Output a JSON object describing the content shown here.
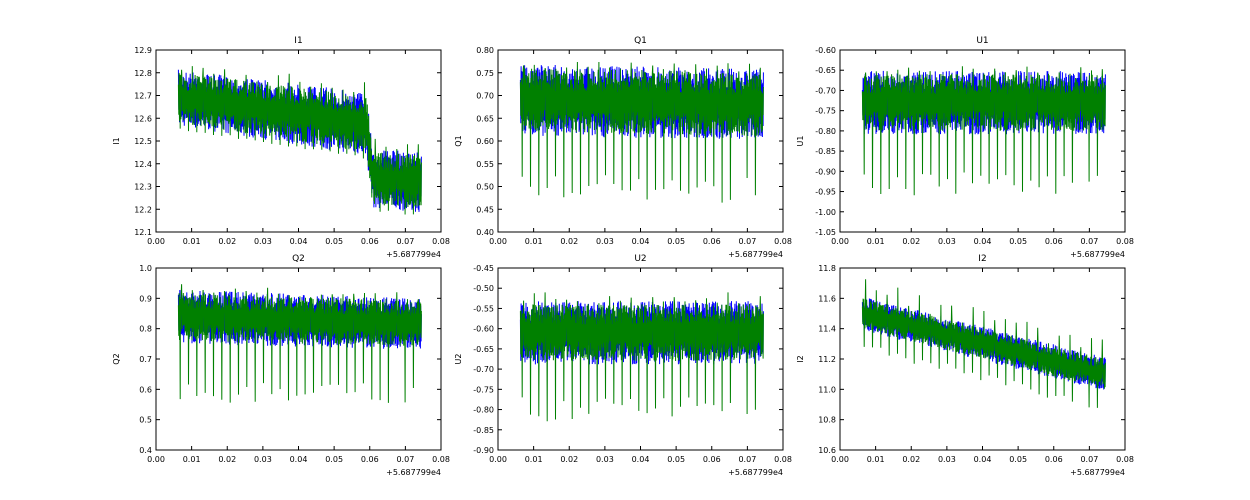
{
  "chart_data": [
    {
      "type": "line",
      "title": "I1",
      "ylabel": "I1",
      "xlim": [
        0,
        0.08
      ],
      "ylim": [
        12.1,
        12.9
      ],
      "xticks": [
        "0.00",
        "0.01",
        "0.02",
        "0.03",
        "0.04",
        "0.05",
        "0.06",
        "0.07",
        "0.08"
      ],
      "yticks": [
        "12.1",
        "12.2",
        "12.3",
        "12.4",
        "12.5",
        "12.6",
        "12.7",
        "12.8",
        "12.9"
      ],
      "x_offset_label": "+5.687799e4",
      "x_range": [
        0.0063,
        0.0745
      ],
      "band": [
        [
          0.0063,
          12.58,
          12.8
        ],
        [
          0.059,
          12.45,
          12.7
        ],
        [
          0.061,
          12.22,
          12.45
        ],
        [
          0.0745,
          12.2,
          12.44
        ]
      ],
      "dip": 0.03,
      "spike": 0.06
    },
    {
      "type": "line",
      "title": "Q1",
      "ylabel": "Q1",
      "xlim": [
        0,
        0.08
      ],
      "ylim": [
        0.4,
        0.8
      ],
      "xticks": [
        "0.00",
        "0.01",
        "0.02",
        "0.03",
        "0.04",
        "0.05",
        "0.06",
        "0.07",
        "0.08"
      ],
      "yticks": [
        "0.40",
        "0.45",
        "0.50",
        "0.55",
        "0.60",
        "0.65",
        "0.70",
        "0.75",
        "0.80"
      ],
      "x_offset_label": "+5.687799e4",
      "x_range": [
        0.0063,
        0.0745
      ],
      "band": [
        [
          0.0063,
          0.62,
          0.76
        ],
        [
          0.0745,
          0.61,
          0.75
        ]
      ],
      "dip": 0.15,
      "spike": 0.02
    },
    {
      "type": "line",
      "title": "U1",
      "ylabel": "U1",
      "xlim": [
        0,
        0.08
      ],
      "ylim": [
        -1.05,
        -0.6
      ],
      "xticks": [
        "0.00",
        "0.01",
        "0.02",
        "0.03",
        "0.04",
        "0.05",
        "0.06",
        "0.07",
        "0.08"
      ],
      "yticks": [
        "-1.05",
        "-1.00",
        "-0.95",
        "-0.90",
        "-0.85",
        "-0.80",
        "-0.75",
        "-0.70",
        "-0.65",
        "-0.60"
      ],
      "x_offset_label": "+5.687799e4",
      "x_range": [
        0.0063,
        0.0745
      ],
      "band": [
        [
          0.0063,
          -0.8,
          -0.66
        ],
        [
          0.0745,
          -0.8,
          -0.66
        ]
      ],
      "dip": 0.16,
      "spike": 0.02
    },
    {
      "type": "line",
      "title": "Q2",
      "ylabel": "Q2",
      "xlim": [
        0,
        0.08
      ],
      "ylim": [
        0.4,
        1.0
      ],
      "xticks": [
        "0.00",
        "0.01",
        "0.02",
        "0.03",
        "0.04",
        "0.05",
        "0.06",
        "0.07",
        "0.08"
      ],
      "yticks": [
        "0.4",
        "0.5",
        "0.6",
        "0.7",
        "0.8",
        "0.9",
        "1.0"
      ],
      "x_offset_label": "+5.687799e4",
      "x_range": [
        0.0063,
        0.0745
      ],
      "band": [
        [
          0.0063,
          0.76,
          0.92
        ],
        [
          0.0745,
          0.74,
          0.89
        ]
      ],
      "dip": 0.2,
      "spike": 0.03
    },
    {
      "type": "line",
      "title": "U2",
      "ylabel": "U2",
      "xlim": [
        0,
        0.08
      ],
      "ylim": [
        -0.9,
        -0.45
      ],
      "xticks": [
        "0.00",
        "0.01",
        "0.02",
        "0.03",
        "0.04",
        "0.05",
        "0.06",
        "0.07",
        "0.08"
      ],
      "yticks": [
        "-0.90",
        "-0.85",
        "-0.80",
        "-0.75",
        "-0.70",
        "-0.65",
        "-0.60",
        "-0.55",
        "-0.50",
        "-0.45"
      ],
      "x_offset_label": "+5.687799e4",
      "x_range": [
        0.0063,
        0.0745
      ],
      "band": [
        [
          0.0063,
          -0.68,
          -0.54
        ],
        [
          0.0745,
          -0.68,
          -0.54
        ]
      ],
      "dip": 0.15,
      "spike": 0.03
    },
    {
      "type": "line",
      "title": "I2",
      "ylabel": "I2",
      "xlim": [
        0,
        0.08
      ],
      "ylim": [
        10.6,
        11.8
      ],
      "xticks": [
        "0.00",
        "0.01",
        "0.02",
        "0.03",
        "0.04",
        "0.05",
        "0.06",
        "0.07",
        "0.08"
      ],
      "yticks": [
        "10.6",
        "10.8",
        "11.0",
        "11.2",
        "11.4",
        "11.6",
        "11.8"
      ],
      "x_offset_label": "+5.687799e4",
      "x_range": [
        0.0063,
        0.0745
      ],
      "band": [
        [
          0.0063,
          11.4,
          11.6
        ],
        [
          0.0745,
          11.0,
          11.2
        ]
      ],
      "dip": 0.15,
      "spike": 0.14
    }
  ],
  "series": [
    {
      "name": "blue",
      "color": "#0000ff"
    },
    {
      "name": "green",
      "color": "#008000"
    }
  ],
  "segment_breaks": [
    0.0197,
    0.033,
    0.047,
    0.061
  ]
}
